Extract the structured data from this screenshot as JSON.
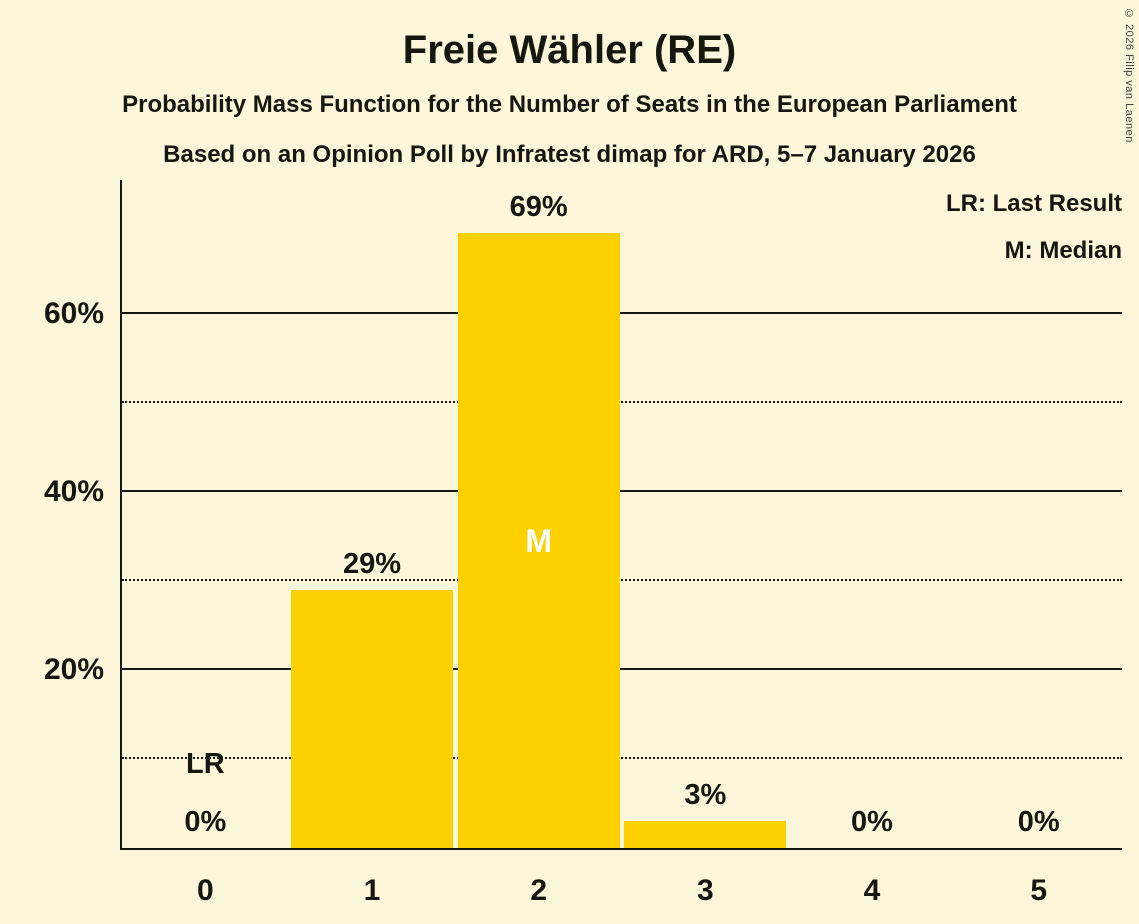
{
  "copyright": "© 2026 Filip van Laenen",
  "colors": {
    "background": "#FCF6DB",
    "bar": "#FDD000",
    "text": "#17160F",
    "axis": "#17160F",
    "median_text": "#FFFFFF"
  },
  "chart_data": {
    "type": "bar",
    "title": "Freie Wähler (RE)",
    "subtitle": "Probability Mass Function for the Number of Seats in the European Parliament",
    "source": "Based on an Opinion Poll by Infratest dimap for ARD, 5–7 January 2026",
    "xlabel": "",
    "ylabel": "",
    "categories": [
      "0",
      "1",
      "2",
      "3",
      "4",
      "5"
    ],
    "values": [
      0,
      29,
      69,
      3,
      0,
      0
    ],
    "bars": [
      {
        "category": "0",
        "value": 0,
        "label": "0%"
      },
      {
        "category": "1",
        "value": 29,
        "label": "29%"
      },
      {
        "category": "2",
        "value": 69,
        "label": "69%",
        "annotation": "M"
      },
      {
        "category": "3",
        "value": 3,
        "label": "3%"
      },
      {
        "category": "4",
        "value": 0,
        "label": "0%"
      },
      {
        "category": "5",
        "value": 0,
        "label": "0%"
      }
    ],
    "ylim": [
      0,
      75
    ],
    "yticks": [
      {
        "value": 10,
        "style": "dotted",
        "label": ""
      },
      {
        "value": 20,
        "style": "solid",
        "label": "20%"
      },
      {
        "value": 30,
        "style": "dotted",
        "label": ""
      },
      {
        "value": 40,
        "style": "solid",
        "label": "40%"
      },
      {
        "value": 50,
        "style": "dotted",
        "label": ""
      },
      {
        "value": 60,
        "style": "solid",
        "label": "60%"
      }
    ],
    "grid": true,
    "legend": {
      "lr": "LR: Last Result",
      "m": "M: Median"
    },
    "legend_position": "top-right",
    "annotations": {
      "last_result": {
        "category": "0",
        "label": "LR"
      },
      "median": {
        "category": "2",
        "label": "M"
      }
    }
  }
}
